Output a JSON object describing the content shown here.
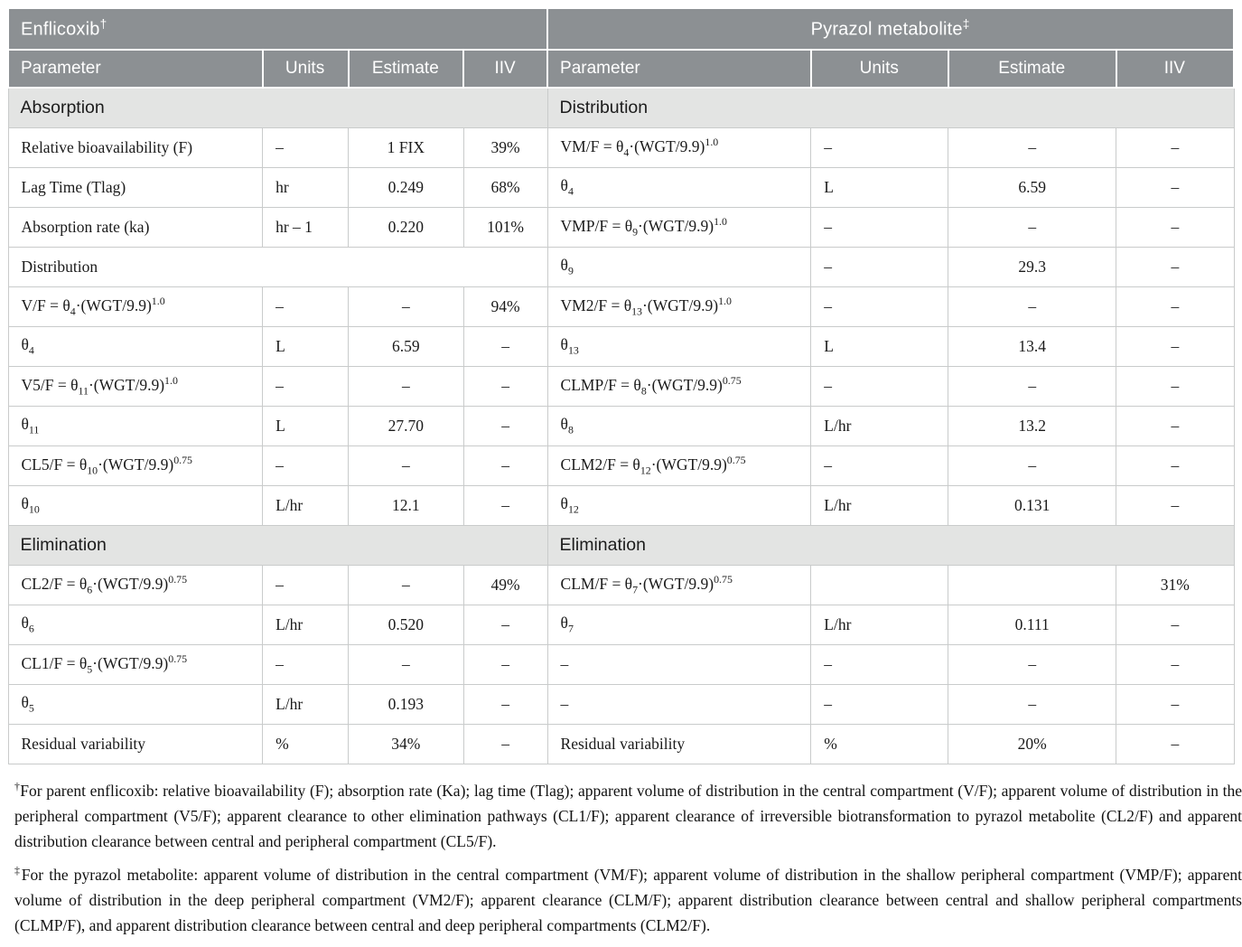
{
  "colors": {
    "header_bg": "#8c9093",
    "band_bg": "#e3e4e3",
    "border": "#c9cbcb",
    "header_text": "#ffffff",
    "text": "#1a1a1a"
  },
  "table": {
    "title_left": "Enflicoxib^†^",
    "title_right": "Pyrazol metabolite^‡^",
    "columns": [
      "Parameter",
      "Units",
      "Estimate",
      "IIV"
    ],
    "rows": [
      {
        "type": "band",
        "left": "Absorption",
        "right": "Distribution"
      },
      {
        "type": "data",
        "left_cells": [
          "Relative bioavailability (F)",
          "–",
          "1 FIX",
          "39%"
        ],
        "right_cells": [
          "VM/F = θ~4~·(WGT/9.9)^1.0^",
          "–",
          "–",
          "–"
        ]
      },
      {
        "type": "data",
        "left_cells": [
          "Lag Time (Tlag)",
          "hr",
          "0.249",
          "68%"
        ],
        "right_cells": [
          "θ~4~",
          "L",
          "6.59",
          "–"
        ]
      },
      {
        "type": "data",
        "left_cells": [
          "Absorption rate (ka)",
          "hr – 1",
          "0.220",
          "101%"
        ],
        "right_cells": [
          "VMP/F = θ~9~·(WGT/9.9)^1.0^",
          "–",
          "–",
          "–"
        ]
      },
      {
        "type": "data",
        "left_span": "Distribution",
        "right_cells": [
          "θ~9~",
          "–",
          "29.3",
          "–"
        ]
      },
      {
        "type": "data",
        "left_cells": [
          "V/F = θ~4~·(WGT/9.9)^1.0^",
          "–",
          "–",
          "94%"
        ],
        "right_cells": [
          "VM2/F = θ~13~·(WGT/9.9)^1.0^",
          "–",
          "–",
          "–"
        ]
      },
      {
        "type": "data",
        "left_cells": [
          "θ~4~",
          "L",
          "6.59",
          "–"
        ],
        "right_cells": [
          "θ~13~",
          "L",
          "13.4",
          "–"
        ]
      },
      {
        "type": "data",
        "left_cells": [
          "V5/F = θ~11~·(WGT/9.9)^1.0^",
          "–",
          "–",
          "–"
        ],
        "right_cells": [
          "CLMP/F = θ~8~·(WGT/9.9)^0.75^",
          "–",
          "–",
          "–"
        ]
      },
      {
        "type": "data",
        "left_cells": [
          "θ~11~",
          "L",
          "27.70",
          "–"
        ],
        "right_cells": [
          "θ~8~",
          "L/hr",
          "13.2",
          "–"
        ]
      },
      {
        "type": "data",
        "left_cells": [
          "CL5/F = θ~10~·(WGT/9.9)^0.75^",
          "–",
          "–",
          "–"
        ],
        "right_cells": [
          "CLM2/F = θ~12~·(WGT/9.9)^0.75^",
          "–",
          "–",
          "–"
        ]
      },
      {
        "type": "data",
        "left_cells": [
          "θ~10~",
          "L/hr",
          "12.1",
          "–"
        ],
        "right_cells": [
          "θ~12~",
          "L/hr",
          "0.131",
          "–"
        ]
      },
      {
        "type": "band",
        "left": "Elimination",
        "right": "Elimination"
      },
      {
        "type": "data",
        "left_cells": [
          "CL2/F = θ~6~·(WGT/9.9)^0.75^",
          "–",
          "–",
          "49%"
        ],
        "right_cells": [
          "CLM/F = θ~7~·(WGT/9.9)^0.75^",
          "",
          "",
          "31%"
        ]
      },
      {
        "type": "data",
        "left_cells": [
          "θ~6~",
          "L/hr",
          "0.520",
          "–"
        ],
        "right_cells": [
          "θ~7~",
          "L/hr",
          "0.111",
          "–"
        ]
      },
      {
        "type": "data",
        "left_cells": [
          "CL1/F = θ~5~·(WGT/9.9)^0.75^",
          "–",
          "–",
          "–"
        ],
        "right_cells": [
          "–",
          "–",
          "–",
          "–"
        ]
      },
      {
        "type": "data",
        "left_cells": [
          "θ~5~",
          "L/hr",
          "0.193",
          "–"
        ],
        "right_cells": [
          "–",
          "–",
          "–",
          "–"
        ]
      },
      {
        "type": "data",
        "left_cells": [
          "Residual variability",
          "%",
          "34%",
          "–"
        ],
        "right_cells": [
          "Residual variability",
          "%",
          "20%",
          "–"
        ]
      }
    ]
  },
  "footnotes": [
    "^†^For parent enflicoxib: relative bioavailability (F); absorption rate (Ka); lag time (Tlag); apparent volume of distribution in the central compartment (V/F); apparent volume of distribution in the peripheral compartment (V5/F); apparent clearance to other elimination pathways (CL1/F); apparent clearance of irreversible biotransformation to pyrazol metabolite (CL2/F) and apparent distribution clearance between central and peripheral compartment (CL5/F).",
    "^‡^For the pyrazol metabolite: apparent volume of distribution in the central compartment (VM/F); apparent volume of distribution in the shallow peripheral compartment (VMP/F); apparent volume of distribution in the deep peripheral compartment (VM2/F); apparent clearance (CLM/F); apparent distribution clearance between central and shallow peripheral compartments (CLMP/F), and apparent distribution clearance between central and deep peripheral compartments (CLM2/F)."
  ]
}
